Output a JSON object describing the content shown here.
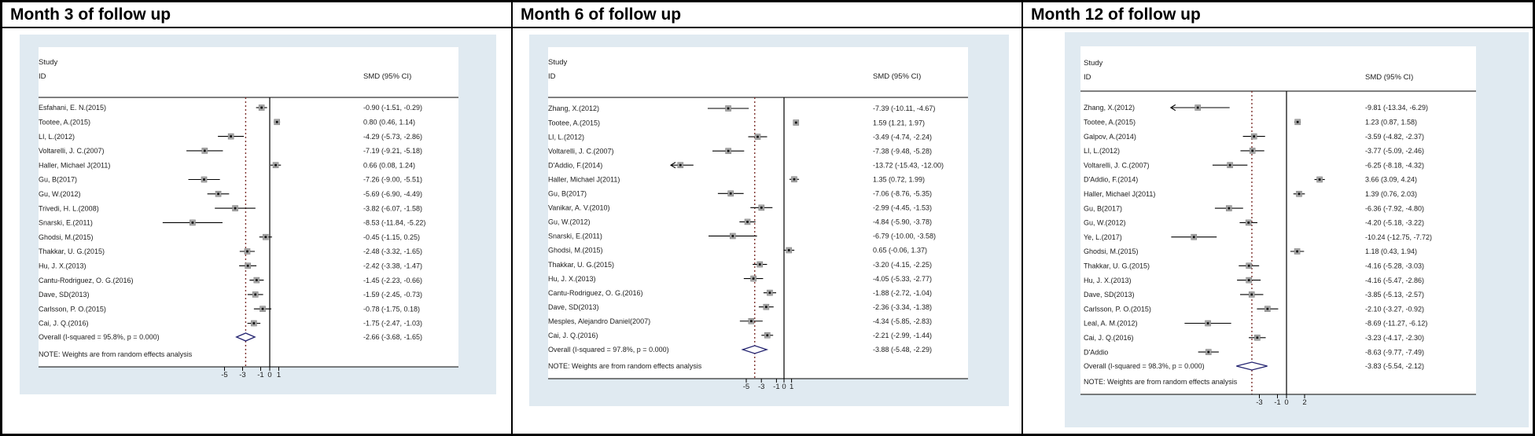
{
  "colors": {
    "graph_bg": "#e0eaf1",
    "plot_bg": "#ffffff",
    "axis_line": "#000000",
    "zero_line": "#000000",
    "dashed_line": "#7e322e",
    "diamond_outline": "#232370",
    "marker_fill": "#a8a8a8",
    "marker_edge": "#7f7f7f",
    "marker_center": "#111111",
    "text": "#1c1c1c"
  },
  "chart_data": [
    {
      "type": "scatter",
      "subtype": "forest-plot",
      "title": "Month 3 of follow up",
      "col_header_line1": "Study",
      "col_header_line2": "ID",
      "value_header": "SMD (95% CI)",
      "note": "NOTE: Weights are from random effects analysis",
      "axis_ticks": [
        -5,
        -3,
        -1,
        0,
        1
      ],
      "studies": [
        {
          "id": "Esfahani, E. N.(2015)",
          "smd": -0.9,
          "lo": -1.51,
          "hi": -0.29,
          "text": "-0.90 (-1.51, -0.29)"
        },
        {
          "id": "Tootee, A.(2015)",
          "smd": 0.8,
          "lo": 0.46,
          "hi": 1.14,
          "text": "0.80 (0.46, 1.14)"
        },
        {
          "id": "LI, L.(2012)",
          "smd": -4.29,
          "lo": -5.73,
          "hi": -2.86,
          "text": "-4.29 (-5.73, -2.86)"
        },
        {
          "id": "Voltarelli, J. C.(2007)",
          "smd": -7.19,
          "lo": -9.21,
          "hi": -5.18,
          "text": "-7.19 (-9.21, -5.18)"
        },
        {
          "id": "Haller, Michael J(2011)",
          "smd": 0.66,
          "lo": 0.08,
          "hi": 1.24,
          "text": "0.66 (0.08, 1.24)"
        },
        {
          "id": "Gu, B(2017)",
          "smd": -7.26,
          "lo": -9.0,
          "hi": -5.51,
          "text": "-7.26 (-9.00, -5.51)"
        },
        {
          "id": "Gu, W.(2012)",
          "smd": -5.69,
          "lo": -6.9,
          "hi": -4.49,
          "text": "-5.69 (-6.90, -4.49)"
        },
        {
          "id": "Trivedi, H. L.(2008)",
          "smd": -3.82,
          "lo": -6.07,
          "hi": -1.58,
          "text": "-3.82 (-6.07, -1.58)"
        },
        {
          "id": "Snarski, E.(2011)",
          "smd": -8.53,
          "lo": -11.84,
          "hi": -5.22,
          "text": "-8.53 (-11.84, -5.22)"
        },
        {
          "id": "Ghodsi, M.(2015)",
          "smd": -0.45,
          "lo": -1.15,
          "hi": 0.25,
          "text": "-0.45 (-1.15, 0.25)"
        },
        {
          "id": "Thakkar, U. G.(2015)",
          "smd": -2.48,
          "lo": -3.32,
          "hi": -1.65,
          "text": "-2.48 (-3.32, -1.65)"
        },
        {
          "id": "Hu, J. X.(2013)",
          "smd": -2.42,
          "lo": -3.38,
          "hi": -1.47,
          "text": "-2.42 (-3.38, -1.47)"
        },
        {
          "id": "Cantu-Rodriguez, O. G.(2016)",
          "smd": -1.45,
          "lo": -2.23,
          "hi": -0.66,
          "text": "-1.45 (-2.23, -0.66)"
        },
        {
          "id": "Dave, SD(2013)",
          "smd": -1.59,
          "lo": -2.45,
          "hi": -0.73,
          "text": "-1.59 (-2.45, -0.73)"
        },
        {
          "id": "Carlsson, P. O.(2015)",
          "smd": -0.78,
          "lo": -1.75,
          "hi": 0.18,
          "text": "-0.78 (-1.75, 0.18)"
        },
        {
          "id": "Cai, J. Q.(2016)",
          "smd": -1.75,
          "lo": -2.47,
          "hi": -1.03,
          "text": "-1.75 (-2.47, -1.03)"
        }
      ],
      "overall": {
        "id": "Overall  (I-squared = 95.8%, p = 0.000)",
        "smd": -2.66,
        "lo": -3.68,
        "hi": -1.65,
        "text": "-2.66 (-3.68, -1.65)"
      }
    },
    {
      "type": "scatter",
      "subtype": "forest-plot",
      "title": "Month 6 of follow up",
      "col_header_line1": "Study",
      "col_header_line2": "ID",
      "value_header": "SMD (95% CI)",
      "note": "NOTE: Weights are from random effects analysis",
      "axis_ticks": [
        -5,
        -3,
        -1,
        0,
        1
      ],
      "studies": [
        {
          "id": "Zhang, X.(2012)",
          "smd": -7.39,
          "lo": -10.11,
          "hi": -4.67,
          "text": "-7.39 (-10.11, -4.67)"
        },
        {
          "id": "Tootee, A.(2015)",
          "smd": 1.59,
          "lo": 1.21,
          "hi": 1.97,
          "text": "1.59 (1.21, 1.97)"
        },
        {
          "id": "LI, L.(2012)",
          "smd": -3.49,
          "lo": -4.74,
          "hi": -2.24,
          "text": "-3.49 (-4.74, -2.24)"
        },
        {
          "id": "Voltarelli, J. C.(2007)",
          "smd": -7.38,
          "lo": -9.48,
          "hi": -5.28,
          "text": "-7.38 (-9.48, -5.28)"
        },
        {
          "id": "D'Addio, F.(2014)",
          "smd": -13.72,
          "lo": -15.43,
          "hi": -12.0,
          "text": "-13.72 (-15.43, -12.00)"
        },
        {
          "id": "Haller, Michael J(2011)",
          "smd": 1.35,
          "lo": 0.72,
          "hi": 1.99,
          "text": "1.35 (0.72, 1.99)"
        },
        {
          "id": "Gu, B(2017)",
          "smd": -7.06,
          "lo": -8.76,
          "hi": -5.35,
          "text": "-7.06 (-8.76, -5.35)"
        },
        {
          "id": "Vanikar, A. V.(2010)",
          "smd": -2.99,
          "lo": -4.45,
          "hi": -1.53,
          "text": "-2.99 (-4.45, -1.53)"
        },
        {
          "id": "Gu, W.(2012)",
          "smd": -4.84,
          "lo": -5.9,
          "hi": -3.78,
          "text": "-4.84 (-5.90, -3.78)"
        },
        {
          "id": "Snarski, E.(2011)",
          "smd": -6.79,
          "lo": -10.0,
          "hi": -3.58,
          "text": "-6.79 (-10.00, -3.58)"
        },
        {
          "id": "Ghodsi, M.(2015)",
          "smd": 0.65,
          "lo": -0.06,
          "hi": 1.37,
          "text": "0.65 (-0.06, 1.37)"
        },
        {
          "id": "Thakkar, U. G.(2015)",
          "smd": -3.2,
          "lo": -4.15,
          "hi": -2.25,
          "text": "-3.20 (-4.15, -2.25)"
        },
        {
          "id": "Hu, J. X.(2013)",
          "smd": -4.05,
          "lo": -5.33,
          "hi": -2.77,
          "text": "-4.05 (-5.33, -2.77)"
        },
        {
          "id": "Cantu-Rodriguez, O. G.(2016)",
          "smd": -1.88,
          "lo": -2.72,
          "hi": -1.04,
          "text": "-1.88 (-2.72, -1.04)"
        },
        {
          "id": "Dave, SD(2013)",
          "smd": -2.36,
          "lo": -3.34,
          "hi": -1.38,
          "text": "-2.36 (-3.34, -1.38)"
        },
        {
          "id": "Mesples, Alejandro Daniel(2007)",
          "smd": -4.34,
          "lo": -5.85,
          "hi": -2.83,
          "text": "-4.34 (-5.85, -2.83)"
        },
        {
          "id": "Cai, J. Q.(2016)",
          "smd": -2.21,
          "lo": -2.99,
          "hi": -1.44,
          "text": "-2.21 (-2.99, -1.44)"
        }
      ],
      "overall": {
        "id": "Overall  (I-squared = 97.8%, p = 0.000)",
        "smd": -3.88,
        "lo": -5.48,
        "hi": -2.29,
        "text": "-3.88 (-5.48, -2.29)"
      }
    },
    {
      "type": "scatter",
      "subtype": "forest-plot",
      "title": "Month 12 of follow up",
      "col_header_line1": "Study",
      "col_header_line2": "ID",
      "value_header": "SMD (95% CI)",
      "note": "NOTE: Weights are from random effects analysis",
      "axis_ticks": [
        -3,
        -1,
        0,
        2
      ],
      "studies": [
        {
          "id": "Zhang, X.(2012)",
          "smd": -9.81,
          "lo": -13.34,
          "hi": -6.29,
          "text": "-9.81 (-13.34, -6.29)"
        },
        {
          "id": "Tootee, A.(2015)",
          "smd": 1.23,
          "lo": 0.87,
          "hi": 1.58,
          "text": "1.23 (0.87, 1.58)"
        },
        {
          "id": "Galpov, A.(2014)",
          "smd": -3.59,
          "lo": -4.82,
          "hi": -2.37,
          "text": "-3.59 (-4.82, -2.37)"
        },
        {
          "id": "LI, L.(2012)",
          "smd": -3.77,
          "lo": -5.09,
          "hi": -2.46,
          "text": "-3.77 (-5.09, -2.46)"
        },
        {
          "id": "Voltarelli, J. C.(2007)",
          "smd": -6.25,
          "lo": -8.18,
          "hi": -4.32,
          "text": "-6.25 (-8.18, -4.32)"
        },
        {
          "id": "D'Addio, F.(2014)",
          "smd": 3.66,
          "lo": 3.09,
          "hi": 4.24,
          "text": "3.66 (3.09, 4.24)"
        },
        {
          "id": "Haller, Michael J(2011)",
          "smd": 1.39,
          "lo": 0.76,
          "hi": 2.03,
          "text": "1.39 (0.76, 2.03)"
        },
        {
          "id": "Gu, B(2017)",
          "smd": -6.36,
          "lo": -7.92,
          "hi": -4.8,
          "text": "-6.36 (-7.92, -4.80)"
        },
        {
          "id": "Gu, W.(2012)",
          "smd": -4.2,
          "lo": -5.18,
          "hi": -3.22,
          "text": "-4.20 (-5.18, -3.22)"
        },
        {
          "id": "Ye, L.(2017)",
          "smd": -10.24,
          "lo": -12.75,
          "hi": -7.72,
          "text": "-10.24 (-12.75, -7.72)"
        },
        {
          "id": "Ghodsi, M.(2015)",
          "smd": 1.18,
          "lo": 0.43,
          "hi": 1.94,
          "text": "1.18 (0.43, 1.94)"
        },
        {
          "id": "Thakkar, U. G.(2015)",
          "smd": -4.16,
          "lo": -5.28,
          "hi": -3.03,
          "text": "-4.16 (-5.28, -3.03)"
        },
        {
          "id": "Hu, J. X.(2013)",
          "smd": -4.16,
          "lo": -5.47,
          "hi": -2.86,
          "text": "-4.16 (-5.47, -2.86)"
        },
        {
          "id": "Dave, SD(2013)",
          "smd": -3.85,
          "lo": -5.13,
          "hi": -2.57,
          "text": "-3.85 (-5.13, -2.57)"
        },
        {
          "id": "Carlsson, P. O.(2015)",
          "smd": -2.1,
          "lo": -3.27,
          "hi": -0.92,
          "text": "-2.10 (-3.27, -0.92)"
        },
        {
          "id": "Leal, A. M.(2012)",
          "smd": -8.69,
          "lo": -11.27,
          "hi": -6.12,
          "text": "-8.69 (-11.27, -6.12)"
        },
        {
          "id": "Cai, J. Q.(2016)",
          "smd": -3.23,
          "lo": -4.17,
          "hi": -2.3,
          "text": "-3.23 (-4.17, -2.30)"
        },
        {
          "id": "D'Addio",
          "smd": -8.63,
          "lo": -9.77,
          "hi": -7.49,
          "text": "-8.63 (-9.77, -7.49)"
        }
      ],
      "overall": {
        "id": "Overall  (I-squared = 98.3%, p = 0.000)",
        "smd": -3.83,
        "lo": -5.54,
        "hi": -2.12,
        "text": "-3.83 (-5.54, -2.12)"
      }
    }
  ]
}
